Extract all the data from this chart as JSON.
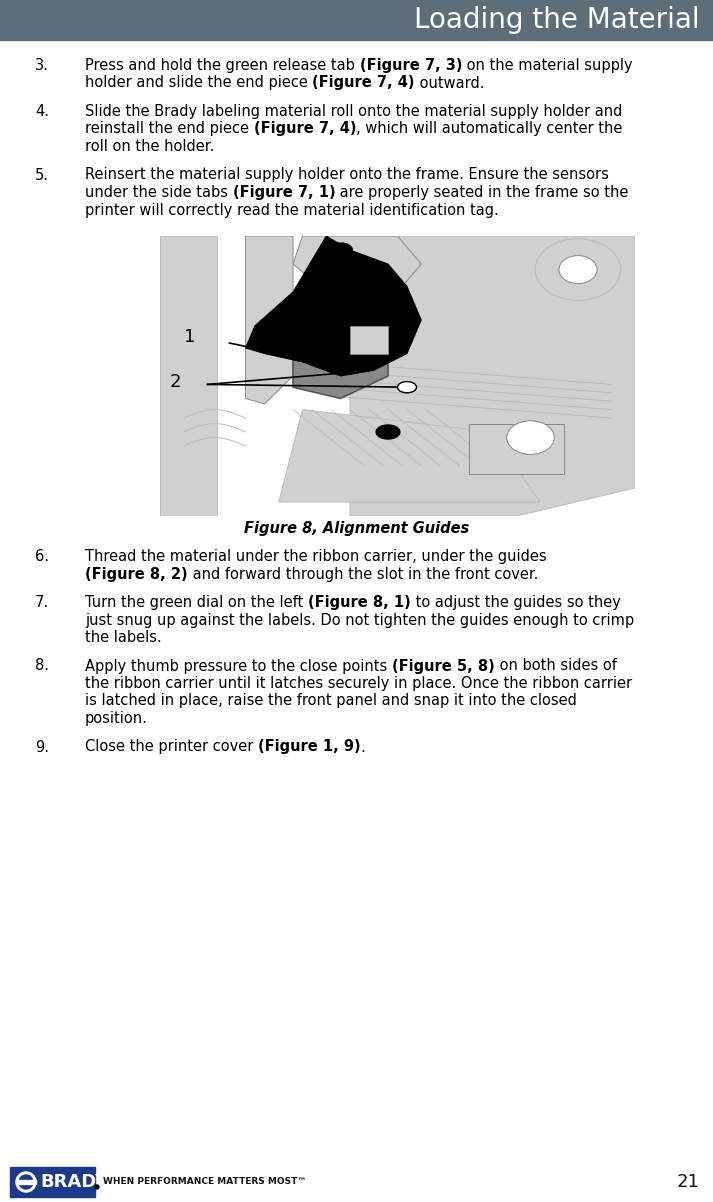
{
  "header_text": "Loading the Material",
  "header_bg_color": "#5d6e7a",
  "header_text_color": "#ffffff",
  "background_color": "#ffffff",
  "page_number": "21",
  "footer_tagline": "WHEN PERFORMANCE MATTERS MOST™",
  "body_font_color": "#000000",
  "items": [
    {
      "number": "3.",
      "lines": [
        [
          {
            "text": "Press and hold the green release tab ",
            "bold": false
          },
          {
            "text": "(Figure 7, 3)",
            "bold": true
          },
          {
            "text": " on the material supply",
            "bold": false
          }
        ],
        [
          {
            "text": "holder and slide the end piece ",
            "bold": false
          },
          {
            "text": "(Figure 7, 4)",
            "bold": true
          },
          {
            "text": " outward.",
            "bold": false
          }
        ]
      ]
    },
    {
      "number": "4.",
      "lines": [
        [
          {
            "text": "Slide the Brady labeling material roll onto the material supply holder and",
            "bold": false
          }
        ],
        [
          {
            "text": "reinstall the end piece ",
            "bold": false
          },
          {
            "text": "(Figure 7, 4)",
            "bold": true
          },
          {
            "text": ", which will automatically center the",
            "bold": false
          }
        ],
        [
          {
            "text": "roll on the holder.",
            "bold": false
          }
        ]
      ]
    },
    {
      "number": "5.",
      "lines": [
        [
          {
            "text": "Reinsert the material supply holder onto the frame. Ensure the sensors",
            "bold": false
          }
        ],
        [
          {
            "text": "under the side tabs ",
            "bold": false
          },
          {
            "text": "(Figure 7, 1)",
            "bold": true
          },
          {
            "text": " are properly seated in the frame so the",
            "bold": false
          }
        ],
        [
          {
            "text": "printer will correctly read the material identification tag.",
            "bold": false
          }
        ]
      ]
    },
    {
      "number": "6.",
      "lines": [
        [
          {
            "text": "Thread the material under the ribbon carrier, under the guides",
            "bold": false
          }
        ],
        [
          {
            "text": "(Figure 8, 2)",
            "bold": true
          },
          {
            "text": " and forward through the slot in the front cover.",
            "bold": false
          }
        ]
      ]
    },
    {
      "number": "7.",
      "lines": [
        [
          {
            "text": "Turn the green dial on the left ",
            "bold": false
          },
          {
            "text": "(Figure 8, 1)",
            "bold": true
          },
          {
            "text": " to adjust the guides so they",
            "bold": false
          }
        ],
        [
          {
            "text": "just snug up against the labels. Do not tighten the guides enough to crimp",
            "bold": false
          }
        ],
        [
          {
            "text": "the labels.",
            "bold": false
          }
        ]
      ]
    },
    {
      "number": "8.",
      "lines": [
        [
          {
            "text": "Apply thumb pressure to the close points ",
            "bold": false
          },
          {
            "text": "(Figure 5, 8)",
            "bold": true
          },
          {
            "text": " on both sides of",
            "bold": false
          }
        ],
        [
          {
            "text": "the ribbon carrier until it latches securely in place. Once the ribbon carrier",
            "bold": false
          }
        ],
        [
          {
            "text": "is latched in place, raise the front panel and snap it into the closed",
            "bold": false
          }
        ],
        [
          {
            "text": "position.",
            "bold": false
          }
        ]
      ]
    },
    {
      "number": "9.",
      "lines": [
        [
          {
            "text": "Close the printer cover ",
            "bold": false
          },
          {
            "text": "(Figure 1, 9)",
            "bold": true
          },
          {
            "text": ".",
            "bold": false
          }
        ]
      ]
    }
  ],
  "figure_caption": "Figure 8, Alignment Guides"
}
